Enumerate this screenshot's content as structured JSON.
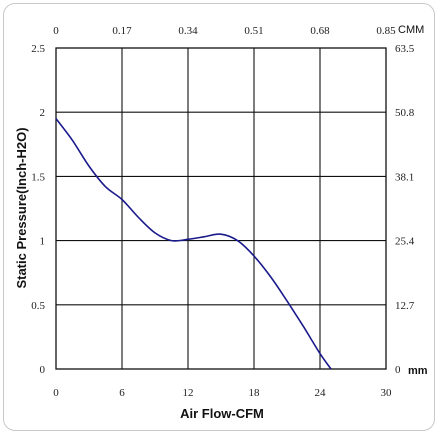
{
  "chart_data": {
    "type": "line",
    "xlabel": "Air Flow-CFM",
    "ylabel": "Static Pressure(Inch-H2O)",
    "xlim": [
      0,
      30
    ],
    "ylim": [
      0,
      2.5
    ],
    "x_ticks": [
      "0",
      "6",
      "12",
      "18",
      "24",
      "30"
    ],
    "y_ticks": [
      "0",
      "0.5",
      "1",
      "1.5",
      "2",
      "2.5"
    ],
    "x2_ticks": [
      "0",
      "0.17",
      "0.34",
      "0.51",
      "0.68",
      "0.85"
    ],
    "x2_unit": "CMM",
    "y2_ticks": [
      "0",
      "12.7",
      "25.4",
      "38.1",
      "50.8",
      "63.5"
    ],
    "y2_unit": "mm",
    "grid": true,
    "line_color": "#1a1a8c",
    "series": [
      {
        "x": [
          0,
          1.5,
          3,
          4.5,
          6,
          7.5,
          9,
          10.5,
          12,
          13.5,
          15,
          16.5,
          18,
          19.5,
          21,
          22.5,
          24,
          25
        ],
        "values": [
          1.95,
          1.78,
          1.58,
          1.42,
          1.32,
          1.18,
          1.06,
          1.0,
          1.01,
          1.03,
          1.05,
          1.0,
          0.88,
          0.72,
          0.53,
          0.33,
          0.12,
          0.0
        ]
      }
    ]
  }
}
